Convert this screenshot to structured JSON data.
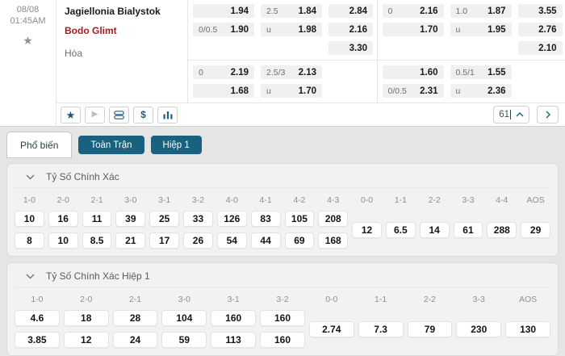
{
  "match": {
    "date": "08/08",
    "time": "01:45AM",
    "home_team": "Jagiellonia Bialystok",
    "away_team": "Bodo Glimt",
    "draw_label": "Hòa",
    "more_markets_count": "61"
  },
  "odds": {
    "full_time": {
      "handicap_rows": [
        {
          "line": "",
          "odds": "1.94"
        },
        {
          "line": "0/0.5",
          "odds": "1.90"
        }
      ],
      "total_rows": [
        {
          "line": "2.5",
          "odds": "1.84"
        },
        {
          "line": "u",
          "odds": "1.98"
        }
      ],
      "moneyline": [
        "2.84",
        "2.16",
        "3.30"
      ],
      "handicap2_rows": [
        {
          "line": "0",
          "odds": "2.19"
        },
        {
          "line": "",
          "odds": "1.68"
        }
      ],
      "total2_rows": [
        {
          "line": "2.5/3",
          "odds": "2.13"
        },
        {
          "line": "u",
          "odds": "1.70"
        }
      ]
    },
    "first_half": {
      "handicap_rows": [
        {
          "line": "0",
          "odds": "2.16"
        },
        {
          "line": "",
          "odds": "1.70"
        }
      ],
      "total_rows": [
        {
          "line": "1.0",
          "odds": "1.87"
        },
        {
          "line": "u",
          "odds": "1.95"
        }
      ],
      "moneyline": [
        "3.55",
        "2.76",
        "2.10"
      ],
      "handicap2_rows": [
        {
          "line": "",
          "odds": "1.60"
        },
        {
          "line": "0/0.5",
          "odds": "2.31"
        }
      ],
      "total2_rows": [
        {
          "line": "0.5/1",
          "odds": "1.55"
        },
        {
          "line": "u",
          "odds": "2.36"
        }
      ]
    }
  },
  "action_bar": {
    "star_glyph": "★",
    "play_glyph": "▶",
    "dollar_glyph": "$"
  },
  "tabs": [
    {
      "label": "Phổ biến",
      "active": true
    },
    {
      "label": "Toàn Trận",
      "active": false
    },
    {
      "label": "Hiệp 1",
      "active": false
    }
  ],
  "sections": [
    {
      "title": "Tỷ Số Chính Xác",
      "columns": [
        {
          "header": "1-0",
          "values": [
            "10",
            "8"
          ]
        },
        {
          "header": "2-0",
          "values": [
            "16",
            "10"
          ]
        },
        {
          "header": "2-1",
          "values": [
            "11",
            "8.5"
          ]
        },
        {
          "header": "3-0",
          "values": [
            "39",
            "21"
          ]
        },
        {
          "header": "3-1",
          "values": [
            "25",
            "17"
          ]
        },
        {
          "header": "3-2",
          "values": [
            "33",
            "26"
          ]
        },
        {
          "header": "4-0",
          "values": [
            "126",
            "54"
          ]
        },
        {
          "header": "4-1",
          "values": [
            "83",
            "44"
          ]
        },
        {
          "header": "4-2",
          "values": [
            "105",
            "69"
          ]
        },
        {
          "header": "4-3",
          "values": [
            "208",
            "168"
          ]
        },
        {
          "header": "0-0",
          "values": [
            "12"
          ]
        },
        {
          "header": "1-1",
          "values": [
            "6.5"
          ]
        },
        {
          "header": "2-2",
          "values": [
            "14"
          ]
        },
        {
          "header": "3-3",
          "values": [
            "61"
          ]
        },
        {
          "header": "4-4",
          "values": [
            "288"
          ]
        },
        {
          "header": "AOS",
          "values": [
            "29"
          ]
        }
      ]
    },
    {
      "title": "Tỷ Số Chính Xác Hiệp 1",
      "columns": [
        {
          "header": "1-0",
          "values": [
            "4.6",
            "3.85"
          ]
        },
        {
          "header": "2-0",
          "values": [
            "18",
            "12"
          ]
        },
        {
          "header": "2-1",
          "values": [
            "28",
            "24"
          ]
        },
        {
          "header": "3-0",
          "values": [
            "104",
            "59"
          ]
        },
        {
          "header": "3-1",
          "values": [
            "160",
            "113"
          ]
        },
        {
          "header": "3-2",
          "values": [
            "160",
            "160"
          ]
        },
        {
          "header": "0-0",
          "values": [
            "2.74"
          ]
        },
        {
          "header": "1-1",
          "values": [
            "7.3"
          ]
        },
        {
          "header": "2-2",
          "values": [
            "79"
          ]
        },
        {
          "header": "3-3",
          "values": [
            "230"
          ]
        },
        {
          "header": "AOS",
          "values": [
            "130"
          ]
        }
      ]
    }
  ],
  "colors": {
    "accent_teal": "#1a607f",
    "away_team_red": "#a21c21",
    "odds_cell_bg": "#f0f0f0",
    "page_bg": "#e5e5e5"
  }
}
